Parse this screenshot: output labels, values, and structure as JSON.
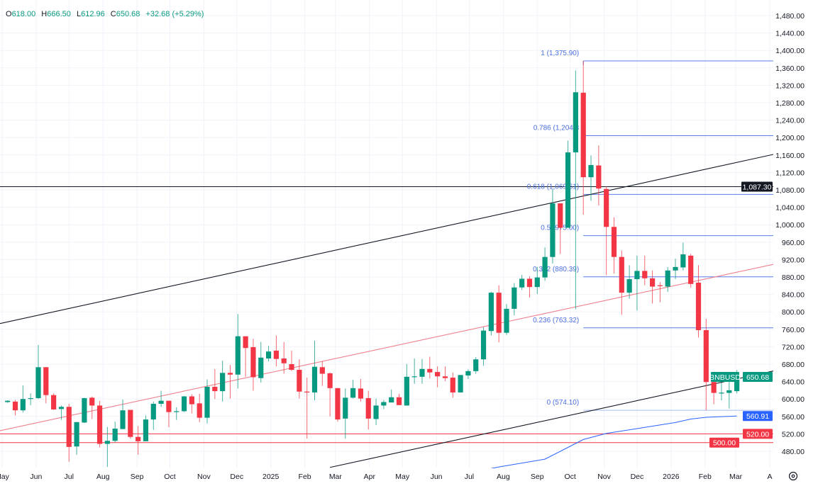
{
  "header": {
    "o_key": "O",
    "o": "618.00",
    "h_key": "H",
    "h": "666.50",
    "l_key": "L",
    "l": "612.96",
    "c_key": "C",
    "c": "650.68",
    "change": "+32.68 (+5.29%)"
  },
  "colors": {
    "up": "#089981",
    "down": "#f23645",
    "fib": "#5b7fe6",
    "fib_zero": "#a9bdf2",
    "ma": "#2962ff",
    "trend_red": "#f0808c",
    "support": "#e0505e",
    "grid": "#f0f3fa"
  },
  "chart_data": {
    "type": "candlestick",
    "symbol": "BNBUSD",
    "interval": "weekly",
    "ylim": [
      470,
      1490
    ],
    "y_ticks": [
      480,
      520,
      560,
      600,
      640,
      680,
      720,
      760,
      800,
      840,
      880,
      920,
      960,
      1000,
      1040,
      1080,
      1120,
      1160,
      1200,
      1240,
      1280,
      1320,
      1360,
      1400,
      1440,
      1480
    ],
    "x_ticks": [
      {
        "label": "May",
        "date": "2024-05-01"
      },
      {
        "label": "Jun",
        "date": "2024-06-01"
      },
      {
        "label": "Jul",
        "date": "2024-07-01"
      },
      {
        "label": "Aug",
        "date": "2024-08-01"
      },
      {
        "label": "Sep",
        "date": "2024-09-01"
      },
      {
        "label": "Oct",
        "date": "2024-10-01"
      },
      {
        "label": "Nov",
        "date": "2024-11-01"
      },
      {
        "label": "Dec",
        "date": "2024-12-01"
      },
      {
        "label": "2025",
        "date": "2025-01-01"
      },
      {
        "label": "Feb",
        "date": "2025-02-01"
      },
      {
        "label": "Mar",
        "date": "2025-03-01"
      },
      {
        "label": "Apr",
        "date": "2025-04-01"
      },
      {
        "label": "May",
        "date": "2025-05-01"
      },
      {
        "label": "Jun",
        "date": "2025-06-01"
      },
      {
        "label": "Jul",
        "date": "2025-07-01"
      },
      {
        "label": "Aug",
        "date": "2025-08-01"
      },
      {
        "label": "Sep",
        "date": "2025-09-01"
      },
      {
        "label": "Oct",
        "date": "2025-10-01"
      },
      {
        "label": "Nov",
        "date": "2025-11-01"
      },
      {
        "label": "Dec",
        "date": "2025-12-01"
      },
      {
        "label": "2026",
        "date": "2026-01-01"
      },
      {
        "label": "Feb",
        "date": "2026-02-01"
      },
      {
        "label": "Mar",
        "date": "2026-03-01"
      },
      {
        "label": "A",
        "date": "2026-04-01"
      }
    ],
    "candles": [
      [
        "2024-05-06",
        593,
        597,
        591,
        596
      ],
      [
        "2024-05-13",
        594,
        598,
        562,
        574
      ],
      [
        "2024-05-20",
        574,
        631,
        569,
        600
      ],
      [
        "2024-05-27",
        600,
        613,
        586,
        602
      ],
      [
        "2024-06-03",
        602,
        724,
        600,
        673
      ],
      [
        "2024-06-10",
        673,
        673,
        590,
        609
      ],
      [
        "2024-06-17",
        609,
        613,
        575,
        576
      ],
      [
        "2024-06-24",
        577,
        585,
        552,
        582
      ],
      [
        "2024-07-01",
        582,
        589,
        456,
        490
      ],
      [
        "2024-07-08",
        491,
        547,
        472,
        547
      ],
      [
        "2024-07-15",
        546,
        603,
        545,
        602
      ],
      [
        "2024-07-22",
        603,
        606,
        554,
        585
      ],
      [
        "2024-07-29",
        585,
        596,
        489,
        497
      ],
      [
        "2024-08-05",
        497,
        536,
        444,
        504
      ],
      [
        "2024-08-12",
        504,
        548,
        500,
        532
      ],
      [
        "2024-08-19",
        531,
        599,
        531,
        574
      ],
      [
        "2024-08-26",
        575,
        575,
        509,
        513
      ],
      [
        "2024-09-02",
        513,
        538,
        472,
        503
      ],
      [
        "2024-09-09",
        503,
        562,
        503,
        553
      ],
      [
        "2024-09-16",
        553,
        594,
        529,
        589
      ],
      [
        "2024-09-23",
        589,
        619,
        582,
        596
      ],
      [
        "2024-09-30",
        596,
        596,
        535,
        570
      ],
      [
        "2024-10-07",
        570,
        581,
        552,
        572
      ],
      [
        "2024-10-14",
        572,
        607,
        570,
        606
      ],
      [
        "2024-10-21",
        606,
        611,
        567,
        588
      ],
      [
        "2024-10-28",
        590,
        612,
        547,
        557
      ],
      [
        "2024-11-04",
        557,
        645,
        544,
        628
      ],
      [
        "2024-11-11",
        628,
        669,
        600,
        618
      ],
      [
        "2024-11-18",
        618,
        688,
        594,
        660
      ],
      [
        "2024-11-25",
        660,
        678,
        601,
        656
      ],
      [
        "2024-12-02",
        656,
        795,
        624,
        744
      ],
      [
        "2024-12-09",
        744,
        744,
        651,
        717
      ],
      [
        "2024-12-16",
        719,
        738,
        619,
        650
      ],
      [
        "2024-12-23",
        648,
        731,
        638,
        695
      ],
      [
        "2024-12-30",
        693,
        722,
        686,
        709
      ],
      [
        "2025-01-06",
        711,
        746,
        675,
        692
      ],
      [
        "2025-01-13",
        693,
        731,
        658,
        682
      ],
      [
        "2025-01-20",
        680,
        711,
        664,
        667
      ],
      [
        "2025-01-27",
        667,
        691,
        601,
        617
      ],
      [
        "2025-02-03",
        617,
        649,
        509,
        615
      ],
      [
        "2025-02-10",
        615,
        734,
        597,
        674
      ],
      [
        "2025-02-17",
        673,
        687,
        630,
        658
      ],
      [
        "2025-02-24",
        659,
        661,
        560,
        625
      ],
      [
        "2025-03-03",
        625,
        625,
        548,
        553
      ],
      [
        "2025-03-10",
        555,
        624,
        509,
        603
      ],
      [
        "2025-03-17",
        603,
        644,
        601,
        625
      ],
      [
        "2025-03-24",
        624,
        646,
        594,
        601
      ],
      [
        "2025-03-31",
        602,
        619,
        530,
        555
      ],
      [
        "2025-04-07",
        554,
        601,
        540,
        585
      ],
      [
        "2025-04-14",
        585,
        598,
        577,
        593
      ],
      [
        "2025-04-21",
        592,
        622,
        592,
        604
      ],
      [
        "2025-04-28",
        604,
        612,
        586,
        586
      ],
      [
        "2025-05-05",
        585,
        680,
        585,
        651
      ],
      [
        "2025-05-12",
        651,
        693,
        635,
        652
      ],
      [
        "2025-05-19",
        651,
        692,
        635,
        669
      ],
      [
        "2025-05-26",
        669,
        697,
        647,
        661
      ],
      [
        "2025-06-02",
        662,
        675,
        627,
        652
      ],
      [
        "2025-06-09",
        652,
        675,
        641,
        648
      ],
      [
        "2025-06-16",
        649,
        661,
        603,
        615
      ],
      [
        "2025-06-23",
        615,
        655,
        615,
        655
      ],
      [
        "2025-06-30",
        654,
        668,
        646,
        664
      ],
      [
        "2025-07-07",
        664,
        696,
        658,
        691
      ],
      [
        "2025-07-14",
        691,
        765,
        676,
        757
      ],
      [
        "2025-07-21",
        756,
        846,
        746,
        844
      ],
      [
        "2025-07-28",
        844,
        861,
        730,
        752
      ],
      [
        "2025-08-04",
        752,
        818,
        747,
        807
      ],
      [
        "2025-08-11",
        807,
        866,
        792,
        856
      ],
      [
        "2025-08-18",
        856,
        885,
        850,
        876
      ],
      [
        "2025-08-25",
        876,
        882,
        833,
        857
      ],
      [
        "2025-09-01",
        857,
        903,
        841,
        879
      ],
      [
        "2025-09-08",
        879,
        948,
        871,
        926
      ],
      [
        "2025-09-15",
        926,
        1082,
        911,
        1049
      ],
      [
        "2025-09-22",
        1049,
        1049,
        933,
        993
      ],
      [
        "2025-09-29",
        993,
        1193,
        993,
        1166
      ],
      [
        "2025-10-06",
        1166,
        1354,
        806,
        1304
      ],
      [
        "2025-10-13",
        1303,
        1375.9,
        1023,
        1109
      ],
      [
        "2025-10-20",
        1109,
        1159,
        1055,
        1137
      ],
      [
        "2025-10-27",
        1136,
        1182,
        1044,
        1083
      ],
      [
        "2025-11-03",
        1082,
        1088,
        884,
        995
      ],
      [
        "2025-11-10",
        995,
        1017,
        888,
        926
      ],
      [
        "2025-11-17",
        926,
        941,
        793,
        844
      ],
      [
        "2025-11-24",
        844,
        907,
        830,
        875
      ],
      [
        "2025-12-01",
        875,
        929,
        803,
        894
      ],
      [
        "2025-12-08",
        894,
        929,
        861,
        877
      ],
      [
        "2025-12-15",
        877,
        895,
        819,
        858
      ],
      [
        "2025-12-22",
        861,
        868,
        822,
        859
      ],
      [
        "2025-12-29",
        858,
        903,
        846,
        895
      ],
      [
        "2026-01-05",
        895,
        922,
        875,
        903
      ],
      [
        "2026-01-12",
        902,
        959,
        895,
        932
      ],
      [
        "2026-01-19",
        929,
        933,
        856,
        864
      ],
      [
        "2026-01-26",
        867,
        907,
        741,
        758
      ],
      [
        "2026-02-02",
        758,
        784,
        574.1,
        639
      ],
      [
        "2026-02-09",
        639,
        646,
        588,
        614
      ],
      [
        "2026-02-16",
        614.4,
        638,
        597,
        614.6
      ],
      [
        "2026-02-23",
        614,
        640,
        578,
        620
      ],
      [
        "2026-03-02",
        618,
        666.5,
        612.96,
        650.68
      ]
    ],
    "candle_fields": [
      "date",
      "open",
      "high",
      "low",
      "close"
    ],
    "moving_average": [
      [
        "2025-06-30",
        430
      ],
      [
        "2025-07-28",
        444
      ],
      [
        "2025-09-08",
        462
      ],
      [
        "2025-09-29",
        489
      ],
      [
        "2025-10-13",
        507
      ],
      [
        "2025-11-03",
        521
      ],
      [
        "2025-12-01",
        532
      ],
      [
        "2026-01-05",
        546
      ],
      [
        "2026-01-19",
        554
      ],
      [
        "2026-02-02",
        558
      ],
      [
        "2026-03-02",
        560.91
      ]
    ],
    "trendlines": [
      {
        "kind": "upper-channel",
        "color": "#131722",
        "points": [
          [
            "2024-05-06",
            777
          ],
          [
            "2026-03-02",
            1143
          ]
        ]
      },
      {
        "kind": "mid-channel",
        "color": "#f0808c",
        "points": [
          [
            "2024-05-06",
            531
          ],
          [
            "2026-03-02",
            891
          ]
        ]
      },
      {
        "kind": "lower-channel",
        "color": "#131722",
        "points": [
          [
            "2025-02-24",
            443
          ],
          [
            "2026-03-02",
            646
          ]
        ]
      }
    ],
    "horizontal_lines": [
      {
        "value": 1087.3,
        "label": "1,087.30",
        "color": "#131722"
      },
      {
        "value": 520.0,
        "label": "520.00",
        "color": "#f23645"
      },
      {
        "value": 500.0,
        "label": "500.00",
        "color": "#f23645"
      }
    ],
    "fib_retracement": {
      "start_date": "2025-10-13",
      "levels": [
        {
          "ratio": 1,
          "value": 1375.9,
          "label": "1 (1,375.90)"
        },
        {
          "ratio": 0.786,
          "value": 1204.32,
          "label": "0.786 (1,204.3"
        },
        {
          "ratio": 0.618,
          "value": 1069.61,
          "label": "0.618 (1,069.61)"
        },
        {
          "ratio": 0.5,
          "value": 975.0,
          "label": "0.5 (975.00)"
        },
        {
          "ratio": 0.382,
          "value": 880.39,
          "label": "0.382 (880.39)"
        },
        {
          "ratio": 0.236,
          "value": 763.32,
          "label": "0.236 (763.32)"
        },
        {
          "ratio": 0,
          "value": 574.1,
          "label": "0 (574.10)"
        }
      ]
    },
    "last_price": {
      "symbol": "BNBUSD",
      "value": "650.68"
    },
    "ma_value": {
      "value": 560.91,
      "label": "560.91"
    }
  }
}
